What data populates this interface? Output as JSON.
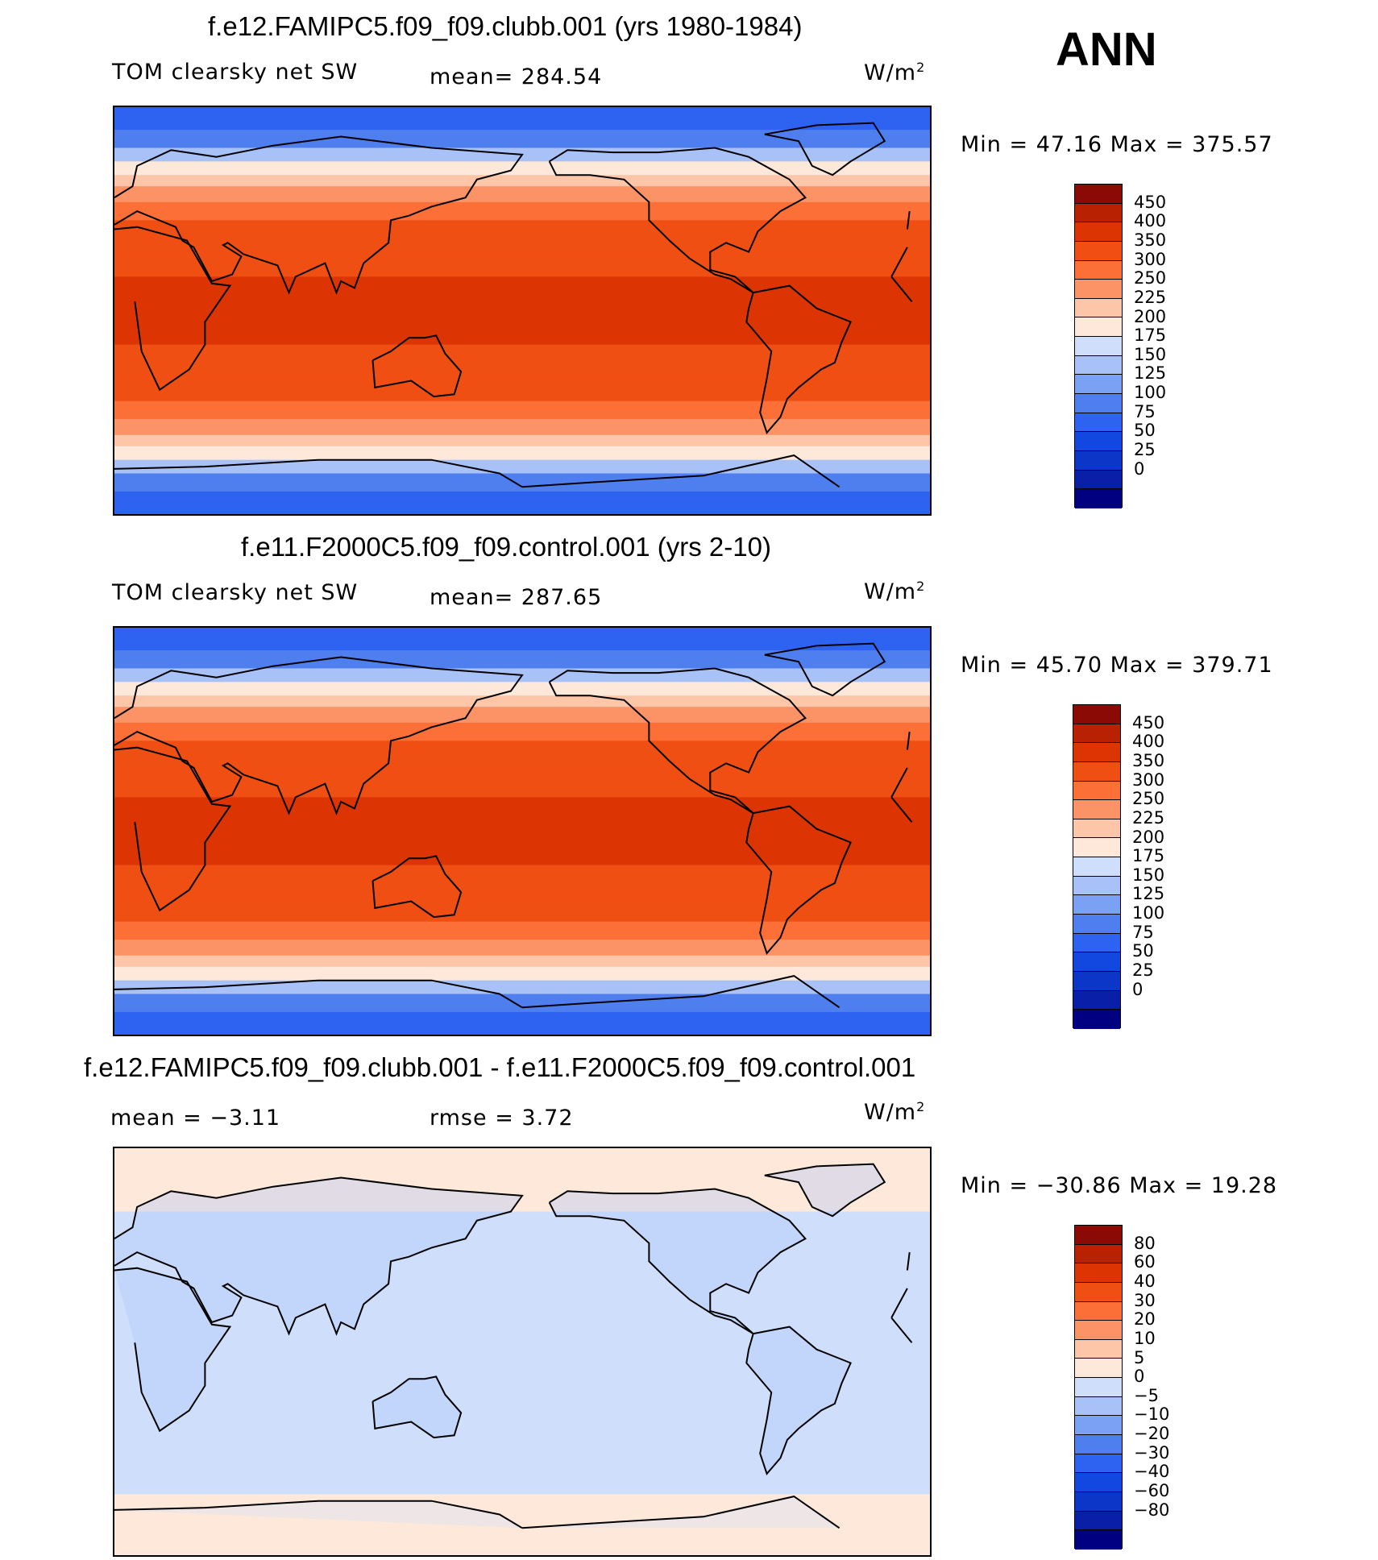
{
  "season": "ANN",
  "panels": [
    {
      "title": "f.e12.FAMIPC5.f09_f09.clubb.001 (yrs 1980-1984)",
      "left_label": "TOM clearsky net SW",
      "mid_label": "mean= 284.54",
      "units": "W/m",
      "units_sup": "2",
      "minmax": "Min =   47.16 Max = 375.57",
      "type": "field"
    },
    {
      "title": "f.e11.F2000C5.f09_f09.control.001 (yrs 2-10)",
      "left_label": "TOM clearsky net SW",
      "mid_label": "mean= 287.65",
      "units": "W/m",
      "units_sup": "2",
      "minmax": "Min =   45.70 Max = 379.71",
      "type": "field"
    },
    {
      "title": "f.e12.FAMIPC5.f09_f09.clubb.001 - f.e11.F2000C5.f09_f09.control.001",
      "left_label": "mean =   −3.11",
      "mid_label": "rmse =    3.72",
      "units": "W/m",
      "units_sup": "2",
      "minmax": "Min = −30.86 Max =  19.28",
      "type": "diff"
    }
  ],
  "chart_data": [
    {
      "type": "heatmap",
      "title": "f.e12.FAMIPC5.f09_f09.clubb.001 (yrs 1980-1984)",
      "variable": "TOM clearsky net SW",
      "units": "W/m2",
      "mean": 284.54,
      "min": 47.16,
      "max": 375.57,
      "colorbar_levels": [
        0,
        25,
        50,
        75,
        100,
        125,
        150,
        175,
        200,
        225,
        250,
        300,
        350,
        400,
        450
      ],
      "colorbar_colors": [
        "#000080",
        "#0a1fa8",
        "#0b36c8",
        "#1348e0",
        "#2d63f0",
        "#4f7fef",
        "#7ba1f5",
        "#a8c2f8",
        "#cfdffb",
        "#fde8da",
        "#fdc6a8",
        "#fb9366",
        "#fc7038",
        "#f04f13",
        "#dc3503",
        "#b82202",
        "#8b0a05"
      ]
    },
    {
      "type": "heatmap",
      "title": "f.e11.F2000C5.f09_f09.control.001 (yrs 2-10)",
      "variable": "TOM clearsky net SW",
      "units": "W/m2",
      "mean": 287.65,
      "min": 45.7,
      "max": 379.71,
      "colorbar_levels": [
        0,
        25,
        50,
        75,
        100,
        125,
        150,
        175,
        200,
        225,
        250,
        300,
        350,
        400,
        450
      ],
      "colorbar_colors": [
        "#000080",
        "#0a1fa8",
        "#0b36c8",
        "#1348e0",
        "#2d63f0",
        "#4f7fef",
        "#7ba1f5",
        "#a8c2f8",
        "#cfdffb",
        "#fde8da",
        "#fdc6a8",
        "#fb9366",
        "#fc7038",
        "#f04f13",
        "#dc3503",
        "#b82202",
        "#8b0a05"
      ]
    },
    {
      "type": "heatmap",
      "title": "f.e12.FAMIPC5.f09_f09.clubb.001 - f.e11.F2000C5.f09_f09.control.001",
      "units": "W/m2",
      "mean": -3.11,
      "rmse": 3.72,
      "min": -30.86,
      "max": 19.28,
      "colorbar_levels": [
        -80,
        -60,
        -40,
        -30,
        -20,
        -10,
        -5,
        0,
        5,
        10,
        20,
        30,
        40,
        60,
        80
      ],
      "colorbar_colors": [
        "#000080",
        "#0a1fa8",
        "#0b36c8",
        "#1348e0",
        "#2d63f0",
        "#4f7fef",
        "#7ba1f5",
        "#a8c2f8",
        "#cfdffb",
        "#fde8da",
        "#fdc6a8",
        "#fb9366",
        "#fc7038",
        "#f04f13",
        "#dc3503",
        "#b82202",
        "#8b0a05"
      ]
    }
  ]
}
